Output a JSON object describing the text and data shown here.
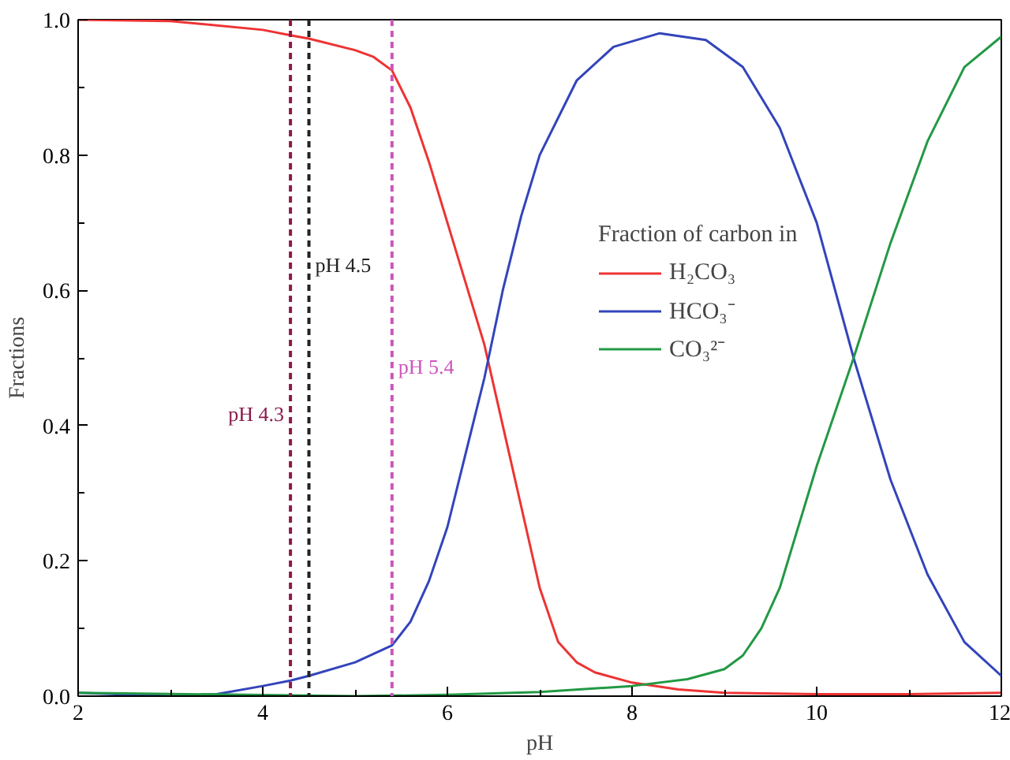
{
  "chart_data": {
    "type": "line",
    "xlabel": "pH",
    "ylabel": "Fractions",
    "legend_title": "Fraction of carbon in",
    "xlim": [
      2,
      12
    ],
    "ylim": [
      0,
      1.0
    ],
    "xticks": [
      2,
      {
        "value": 3,
        "label": null
      },
      4,
      {
        "value": 5,
        "label": null
      },
      6,
      {
        "value": 7,
        "label": null
      },
      8,
      {
        "value": 9,
        "label": null
      },
      10,
      {
        "value": 11,
        "label": null
      },
      12
    ],
    "yticks": [
      {
        "value": 0,
        "label": "0.0"
      },
      {
        "value": 0.1,
        "label": null
      },
      0.2,
      {
        "value": 0.3,
        "label": null
      },
      0.4,
      {
        "value": 0.5,
        "label": null
      },
      0.6,
      {
        "value": 0.7,
        "label": null
      },
      0.8,
      {
        "value": 0.9,
        "label": null
      },
      {
        "value": 1.0,
        "label": "1.0"
      }
    ],
    "grid": false,
    "legend": "center",
    "line_style": "solid",
    "series": [
      {
        "name": "H₂CO₃",
        "color": "#ee3333",
        "x": [
          2,
          3,
          4,
          4.3,
          4.5,
          5,
          5.2,
          5.4,
          5.6,
          5.8,
          6.0,
          6.2,
          6.4,
          6.6,
          6.8,
          7.0,
          7.2,
          7.4,
          7.6,
          8,
          8.5,
          9,
          10,
          11,
          12
        ],
        "values": [
          1.0,
          0.998,
          0.985,
          0.977,
          0.972,
          0.955,
          0.945,
          0.925,
          0.87,
          0.79,
          0.7,
          0.61,
          0.52,
          0.4,
          0.28,
          0.16,
          0.08,
          0.05,
          0.035,
          0.02,
          0.01,
          0.005,
          0.003,
          0.003,
          0.005
        ]
      },
      {
        "name": "HCO₃⁻",
        "color": "#3344bb",
        "x": [
          2,
          3,
          3.5,
          4,
          4.3,
          4.5,
          5,
          5.4,
          5.6,
          5.8,
          6.0,
          6.2,
          6.4,
          6.6,
          6.8,
          7.0,
          7.4,
          7.8,
          8.3,
          8.8,
          9.2,
          9.6,
          10,
          10.4,
          10.8,
          11.2,
          11.6,
          12
        ],
        "values": [
          0.005,
          0.0,
          0.003,
          0.015,
          0.023,
          0.03,
          0.05,
          0.075,
          0.11,
          0.17,
          0.25,
          0.36,
          0.47,
          0.6,
          0.71,
          0.8,
          0.91,
          0.96,
          0.98,
          0.97,
          0.93,
          0.84,
          0.7,
          0.5,
          0.32,
          0.18,
          0.08,
          0.03
        ]
      },
      {
        "name": "CO₃²⁻",
        "color": "#229944",
        "x": [
          2,
          5,
          6,
          7,
          8,
          8.6,
          9,
          9.2,
          9.4,
          9.6,
          9.8,
          10,
          10.4,
          10.8,
          11.2,
          11.6,
          12
        ],
        "values": [
          0.005,
          0.0,
          0.002,
          0.006,
          0.015,
          0.025,
          0.04,
          0.06,
          0.1,
          0.16,
          0.25,
          0.34,
          0.5,
          0.67,
          0.82,
          0.93,
          0.975
        ]
      }
    ],
    "ref_lines": [
      {
        "axis": "x",
        "value": 4.3,
        "label": "pH 4.3",
        "color": "#8b1a4a",
        "line_style": "dashed"
      },
      {
        "axis": "x",
        "value": 4.5,
        "label": "pH 4.5",
        "color": "#222222",
        "line_style": "dashed"
      },
      {
        "axis": "x",
        "value": 5.4,
        "label": "pH 5.4",
        "color": "#cc55bb",
        "line_style": "dashed"
      }
    ]
  }
}
